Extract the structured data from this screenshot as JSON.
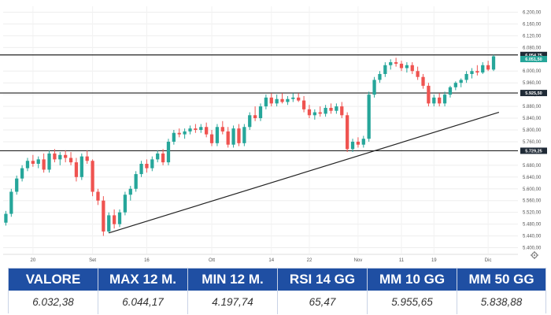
{
  "chart_data": {
    "type": "candlestick",
    "y_ticks": [
      "6.200,00",
      "6.160,00",
      "6.120,00",
      "6.080,00",
      "6.000,00",
      "5.960,00",
      "5.920,00",
      "5.880,00",
      "5.840,00",
      "5.800,00",
      "5.760,00",
      "5.680,00",
      "5.640,00",
      "5.600,00",
      "5.560,00",
      "5.520,00",
      "5.480,00",
      "5.440,00",
      "5.400,00"
    ],
    "y_tick_values": [
      6200,
      6160,
      6120,
      6080,
      6000,
      5960,
      5920,
      5880,
      5840,
      5800,
      5760,
      5680,
      5640,
      5600,
      5560,
      5520,
      5480,
      5440,
      5400
    ],
    "ylim": [
      5380,
      6220
    ],
    "x_ticks": [
      {
        "label": "20",
        "index": 5
      },
      {
        "label": "Set",
        "index": 16
      },
      {
        "label": "16",
        "index": 26
      },
      {
        "label": "Ott",
        "index": 38
      },
      {
        "label": "14",
        "index": 49
      },
      {
        "label": "22",
        "index": 56
      },
      {
        "label": "Nov",
        "index": 65
      },
      {
        "label": "11",
        "index": 73
      },
      {
        "label": "19",
        "index": 79
      },
      {
        "label": "Dic",
        "index": 89
      }
    ],
    "n_slots": 95,
    "level_lines": [
      {
        "value": 6054.75,
        "label": "6.054,75",
        "style": "dark"
      },
      {
        "value": 5925.5,
        "label": "5.925,50",
        "style": "dark"
      },
      {
        "value": 5729.25,
        "label": "5.729,25",
        "style": "dark"
      }
    ],
    "current_price": {
      "value": 6051.5,
      "label": "6.051,50",
      "color": "#26a69a"
    },
    "trendline": [
      {
        "index": 19,
        "value": 5450
      },
      {
        "index": 91,
        "value": 5860
      }
    ],
    "up_color": "#26a69a",
    "down_color": "#ef5350",
    "candles": [
      {
        "o": 5485,
        "h": 5525,
        "l": 5475,
        "c": 5515
      },
      {
        "o": 5515,
        "h": 5600,
        "l": 5505,
        "c": 5590
      },
      {
        "o": 5590,
        "h": 5645,
        "l": 5580,
        "c": 5635
      },
      {
        "o": 5635,
        "h": 5680,
        "l": 5625,
        "c": 5670
      },
      {
        "o": 5670,
        "h": 5705,
        "l": 5660,
        "c": 5695
      },
      {
        "o": 5695,
        "h": 5715,
        "l": 5675,
        "c": 5685
      },
      {
        "o": 5685,
        "h": 5710,
        "l": 5670,
        "c": 5700
      },
      {
        "o": 5700,
        "h": 5720,
        "l": 5655,
        "c": 5665
      },
      {
        "o": 5665,
        "h": 5730,
        "l": 5655,
        "c": 5720
      },
      {
        "o": 5720,
        "h": 5735,
        "l": 5690,
        "c": 5700
      },
      {
        "o": 5700,
        "h": 5725,
        "l": 5680,
        "c": 5715
      },
      {
        "o": 5715,
        "h": 5730,
        "l": 5690,
        "c": 5705
      },
      {
        "o": 5705,
        "h": 5725,
        "l": 5680,
        "c": 5690
      },
      {
        "o": 5690,
        "h": 5705,
        "l": 5625,
        "c": 5640
      },
      {
        "o": 5640,
        "h": 5720,
        "l": 5630,
        "c": 5710
      },
      {
        "o": 5710,
        "h": 5730,
        "l": 5685,
        "c": 5695
      },
      {
        "o": 5695,
        "h": 5700,
        "l": 5575,
        "c": 5590
      },
      {
        "o": 5590,
        "h": 5600,
        "l": 5545,
        "c": 5560
      },
      {
        "o": 5560,
        "h": 5575,
        "l": 5440,
        "c": 5455
      },
      {
        "o": 5455,
        "h": 5520,
        "l": 5450,
        "c": 5510
      },
      {
        "o": 5510,
        "h": 5530,
        "l": 5465,
        "c": 5480
      },
      {
        "o": 5480,
        "h": 5530,
        "l": 5470,
        "c": 5520
      },
      {
        "o": 5520,
        "h": 5590,
        "l": 5510,
        "c": 5580
      },
      {
        "o": 5580,
        "h": 5610,
        "l": 5560,
        "c": 5600
      },
      {
        "o": 5600,
        "h": 5660,
        "l": 5590,
        "c": 5650
      },
      {
        "o": 5650,
        "h": 5695,
        "l": 5640,
        "c": 5685
      },
      {
        "o": 5685,
        "h": 5700,
        "l": 5655,
        "c": 5670
      },
      {
        "o": 5670,
        "h": 5710,
        "l": 5660,
        "c": 5700
      },
      {
        "o": 5700,
        "h": 5730,
        "l": 5690,
        "c": 5720
      },
      {
        "o": 5720,
        "h": 5735,
        "l": 5680,
        "c": 5690
      },
      {
        "o": 5690,
        "h": 5770,
        "l": 5680,
        "c": 5760
      },
      {
        "o": 5760,
        "h": 5800,
        "l": 5750,
        "c": 5790
      },
      {
        "o": 5790,
        "h": 5805,
        "l": 5775,
        "c": 5785
      },
      {
        "o": 5785,
        "h": 5805,
        "l": 5770,
        "c": 5795
      },
      {
        "o": 5795,
        "h": 5815,
        "l": 5785,
        "c": 5805
      },
      {
        "o": 5805,
        "h": 5820,
        "l": 5790,
        "c": 5800
      },
      {
        "o": 5800,
        "h": 5820,
        "l": 5790,
        "c": 5810
      },
      {
        "o": 5810,
        "h": 5825,
        "l": 5775,
        "c": 5785
      },
      {
        "o": 5785,
        "h": 5800,
        "l": 5745,
        "c": 5755
      },
      {
        "o": 5755,
        "h": 5820,
        "l": 5745,
        "c": 5810
      },
      {
        "o": 5810,
        "h": 5830,
        "l": 5785,
        "c": 5795
      },
      {
        "o": 5795,
        "h": 5810,
        "l": 5740,
        "c": 5750
      },
      {
        "o": 5750,
        "h": 5815,
        "l": 5740,
        "c": 5805
      },
      {
        "o": 5805,
        "h": 5820,
        "l": 5745,
        "c": 5755
      },
      {
        "o": 5755,
        "h": 5820,
        "l": 5745,
        "c": 5810
      },
      {
        "o": 5810,
        "h": 5860,
        "l": 5800,
        "c": 5850
      },
      {
        "o": 5850,
        "h": 5880,
        "l": 5830,
        "c": 5840
      },
      {
        "o": 5840,
        "h": 5890,
        "l": 5830,
        "c": 5880
      },
      {
        "o": 5880,
        "h": 5920,
        "l": 5870,
        "c": 5910
      },
      {
        "o": 5910,
        "h": 5925,
        "l": 5880,
        "c": 5890
      },
      {
        "o": 5890,
        "h": 5920,
        "l": 5880,
        "c": 5905
      },
      {
        "o": 5905,
        "h": 5925,
        "l": 5890,
        "c": 5895
      },
      {
        "o": 5895,
        "h": 5915,
        "l": 5885,
        "c": 5905
      },
      {
        "o": 5905,
        "h": 5925,
        "l": 5895,
        "c": 5910
      },
      {
        "o": 5910,
        "h": 5925,
        "l": 5895,
        "c": 5900
      },
      {
        "o": 5900,
        "h": 5915,
        "l": 5860,
        "c": 5870
      },
      {
        "o": 5870,
        "h": 5885,
        "l": 5840,
        "c": 5850
      },
      {
        "o": 5850,
        "h": 5870,
        "l": 5835,
        "c": 5860
      },
      {
        "o": 5860,
        "h": 5880,
        "l": 5845,
        "c": 5855
      },
      {
        "o": 5855,
        "h": 5885,
        "l": 5845,
        "c": 5875
      },
      {
        "o": 5875,
        "h": 5890,
        "l": 5855,
        "c": 5865
      },
      {
        "o": 5865,
        "h": 5890,
        "l": 5855,
        "c": 5880
      },
      {
        "o": 5880,
        "h": 5895,
        "l": 5840,
        "c": 5850
      },
      {
        "o": 5850,
        "h": 5860,
        "l": 5725,
        "c": 5735
      },
      {
        "o": 5735,
        "h": 5770,
        "l": 5725,
        "c": 5760
      },
      {
        "o": 5760,
        "h": 5775,
        "l": 5740,
        "c": 5750
      },
      {
        "o": 5750,
        "h": 5780,
        "l": 5740,
        "c": 5770
      },
      {
        "o": 5770,
        "h": 5930,
        "l": 5760,
        "c": 5920
      },
      {
        "o": 5920,
        "h": 5980,
        "l": 5910,
        "c": 5970
      },
      {
        "o": 5970,
        "h": 6000,
        "l": 5960,
        "c": 5990
      },
      {
        "o": 5990,
        "h": 6030,
        "l": 5980,
        "c": 6020
      },
      {
        "o": 6020,
        "h": 6040,
        "l": 6005,
        "c": 6030
      },
      {
        "o": 6030,
        "h": 6045,
        "l": 6015,
        "c": 6025
      },
      {
        "o": 6025,
        "h": 6035,
        "l": 6000,
        "c": 6010
      },
      {
        "o": 6010,
        "h": 6030,
        "l": 5995,
        "c": 6020
      },
      {
        "o": 6020,
        "h": 6030,
        "l": 5990,
        "c": 6000
      },
      {
        "o": 6000,
        "h": 6015,
        "l": 5970,
        "c": 5980
      },
      {
        "o": 5980,
        "h": 5990,
        "l": 5940,
        "c": 5950
      },
      {
        "o": 5950,
        "h": 5960,
        "l": 5880,
        "c": 5890
      },
      {
        "o": 5890,
        "h": 5920,
        "l": 5880,
        "c": 5910
      },
      {
        "o": 5910,
        "h": 5925,
        "l": 5880,
        "c": 5890
      },
      {
        "o": 5890,
        "h": 5930,
        "l": 5880,
        "c": 5920
      },
      {
        "o": 5920,
        "h": 5950,
        "l": 5910,
        "c": 5945
      },
      {
        "o": 5945,
        "h": 5965,
        "l": 5935,
        "c": 5960
      },
      {
        "o": 5960,
        "h": 5975,
        "l": 5945,
        "c": 5970
      },
      {
        "o": 5970,
        "h": 6000,
        "l": 5960,
        "c": 5990
      },
      {
        "o": 5990,
        "h": 6010,
        "l": 5975,
        "c": 6000
      },
      {
        "o": 6000,
        "h": 6020,
        "l": 5985,
        "c": 5995
      },
      {
        "o": 5995,
        "h": 6030,
        "l": 5990,
        "c": 6020
      },
      {
        "o": 6020,
        "h": 6035,
        "l": 6000,
        "c": 6005
      },
      {
        "o": 6005,
        "h": 6055,
        "l": 6000,
        "c": 6050
      }
    ]
  },
  "stats": [
    {
      "header": "VALORE",
      "value": "6.032,38"
    },
    {
      "header": "MAX 12 M.",
      "value": "6.044,17"
    },
    {
      "header": "MIN 12 M.",
      "value": "4.197,74"
    },
    {
      "header": "RSI 14 GG",
      "value": "65,47"
    },
    {
      "header": "MM 10 GG",
      "value": "5.955,65"
    },
    {
      "header": "MM 50 GG",
      "value": "5.838,88"
    }
  ],
  "icons": {
    "settings": "gear-icon"
  }
}
